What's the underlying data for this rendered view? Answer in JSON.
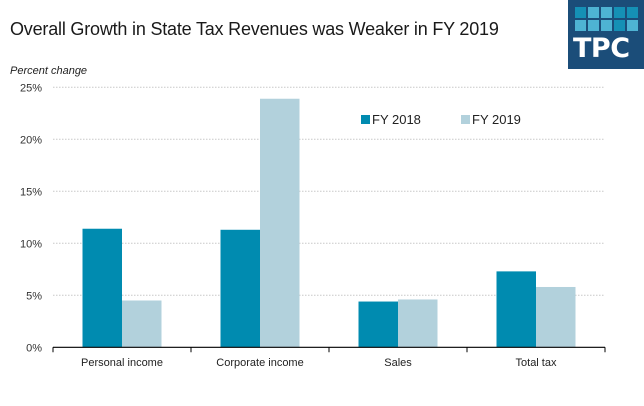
{
  "header": {
    "title": "Overall Growth in State Tax Revenues was Weaker in FY 2019",
    "logo_text": "TPC",
    "logo_bg": "#1b4d79",
    "logo_squares": [
      "#1590b5",
      "#4eb3d3",
      "#4eb3d3",
      "#1590b5",
      "#1590b5",
      "#4eb3d3",
      "#4eb3d3",
      "#4eb3d3",
      "#1590b5",
      "#4eb3d3"
    ]
  },
  "chart_data": {
    "type": "bar",
    "title": "Overall Growth in State Tax Revenues was Weaker in FY 2019",
    "xlabel": "",
    "ylabel": "Percent change",
    "categories": [
      "Personal income",
      "Corporate income",
      "Sales",
      "Total tax"
    ],
    "series": [
      {
        "name": "FY 2018",
        "color": "#008bb0",
        "values": [
          11.4,
          11.3,
          4.4,
          7.3
        ]
      },
      {
        "name": "FY 2019",
        "color": "#b2d1dc",
        "values": [
          4.5,
          23.9,
          4.6,
          5.8
        ]
      }
    ],
    "ylim": [
      0,
      25
    ],
    "yticks": [
      0,
      5,
      10,
      15,
      20,
      25
    ],
    "ytick_labels": [
      "0%",
      "5%",
      "10%",
      "15%",
      "20%",
      "25%"
    ],
    "grid": true,
    "legend_position": "top-right"
  }
}
